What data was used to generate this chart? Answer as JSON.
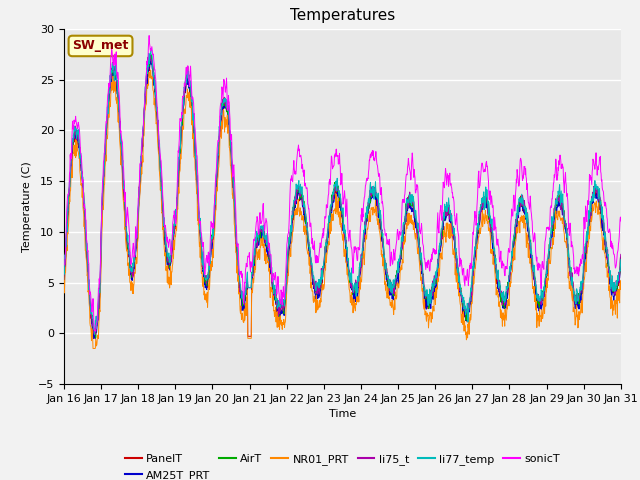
{
  "title": "Temperatures",
  "xlabel": "Time",
  "ylabel": "Temperature (C)",
  "ylim": [
    -5,
    30
  ],
  "yticks": [
    -5,
    0,
    5,
    10,
    15,
    20,
    25,
    30
  ],
  "x_labels": [
    "Jan 16",
    "Jan 17",
    "Jan 18",
    "Jan 19",
    "Jan 20",
    "Jan 21",
    "Jan 22",
    "Jan 23",
    "Jan 24",
    "Jan 25",
    "Jan 26",
    "Jan 27",
    "Jan 28",
    "Jan 29",
    "Jan 30",
    "Jan 31"
  ],
  "annotation_text": "SW_met",
  "annotation_color": "#8B0000",
  "annotation_bg": "#FFFFCC",
  "annotation_edge": "#AA8800",
  "series_colors": {
    "PanelT": "#CC0000",
    "AM25T_PRT": "#0000CC",
    "AirT": "#00AA00",
    "NR01_PRT": "#FF8800",
    "li75_t": "#AA00AA",
    "li77_temp": "#00BBBB",
    "sonicT": "#FF00FF"
  },
  "background_color": "#F2F2F2",
  "plot_bg": "#E8E8E8",
  "grid_color": "#FFFFFF",
  "num_points": 1440,
  "days": 15,
  "figsize": [
    6.4,
    4.8
  ],
  "dpi": 100,
  "linewidth": 0.7,
  "title_fontsize": 11,
  "label_fontsize": 8,
  "tick_fontsize": 8,
  "legend_fontsize": 8
}
